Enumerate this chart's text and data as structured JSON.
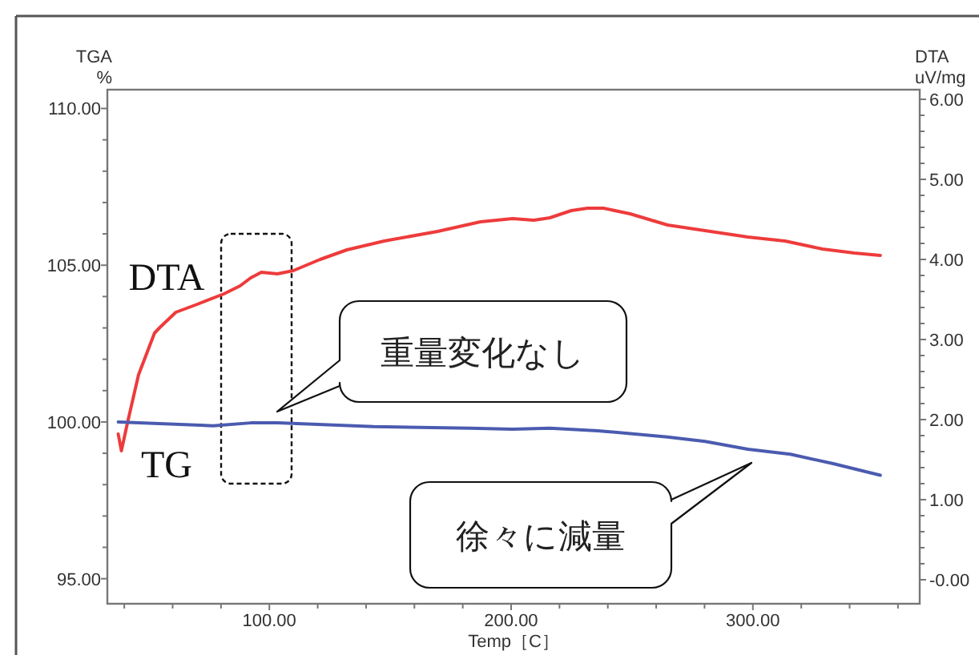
{
  "chart_data": {
    "type": "line",
    "xlabel": "Temp［C］",
    "ylabel": "TGA %",
    "y2label": "DTA uV/mg",
    "xlim": [
      33,
      369
    ],
    "xticks": [
      {
        "value": 40,
        "label": null
      },
      {
        "value": 60,
        "label": null
      },
      {
        "value": 80,
        "label": null
      },
      {
        "value": 100,
        "label": "100.00"
      },
      {
        "value": 120,
        "label": null
      },
      {
        "value": 140,
        "label": null
      },
      {
        "value": 160,
        "label": null
      },
      {
        "value": 180,
        "label": null
      },
      {
        "value": 200,
        "label": "200.00"
      },
      {
        "value": 220,
        "label": null
      },
      {
        "value": 240,
        "label": null
      },
      {
        "value": 260,
        "label": null
      },
      {
        "value": 280,
        "label": null
      },
      {
        "value": 300,
        "label": "300.00"
      },
      {
        "value": 320,
        "label": null
      },
      {
        "value": 340,
        "label": null
      },
      {
        "value": 360,
        "label": null
      }
    ],
    "ylim": [
      94.2,
      110.6
    ],
    "yticks": [
      {
        "value": 95,
        "label": "95.00"
      },
      {
        "value": 96,
        "label": null
      },
      {
        "value": 97,
        "label": null
      },
      {
        "value": 98,
        "label": null
      },
      {
        "value": 99,
        "label": null
      },
      {
        "value": 100,
        "label": "100.00"
      },
      {
        "value": 101,
        "label": null
      },
      {
        "value": 102,
        "label": null
      },
      {
        "value": 103,
        "label": null
      },
      {
        "value": 104,
        "label": null
      },
      {
        "value": 105,
        "label": "105.00"
      },
      {
        "value": 106,
        "label": null
      },
      {
        "value": 107,
        "label": null
      },
      {
        "value": 108,
        "label": null
      },
      {
        "value": 109,
        "label": null
      },
      {
        "value": 110,
        "label": "110.00"
      }
    ],
    "y2lim": [
      -0.3,
      6.12
    ],
    "y2ticks": [
      {
        "value": 0,
        "label": "-0.00"
      },
      {
        "value": 0.2,
        "label": null
      },
      {
        "value": 0.4,
        "label": null
      },
      {
        "value": 0.6,
        "label": null
      },
      {
        "value": 0.8,
        "label": null
      },
      {
        "value": 1,
        "label": "1.00"
      },
      {
        "value": 1.2,
        "label": null
      },
      {
        "value": 1.4,
        "label": null
      },
      {
        "value": 1.6,
        "label": null
      },
      {
        "value": 1.8,
        "label": null
      },
      {
        "value": 2,
        "label": "2.00"
      },
      {
        "value": 2.2,
        "label": null
      },
      {
        "value": 2.4,
        "label": null
      },
      {
        "value": 2.6,
        "label": null
      },
      {
        "value": 2.8,
        "label": null
      },
      {
        "value": 3,
        "label": "3.00"
      },
      {
        "value": 3.2,
        "label": null
      },
      {
        "value": 3.4,
        "label": null
      },
      {
        "value": 3.6,
        "label": null
      },
      {
        "value": 3.8,
        "label": null
      },
      {
        "value": 4,
        "label": "4.00"
      },
      {
        "value": 4.2,
        "label": null
      },
      {
        "value": 4.4,
        "label": null
      },
      {
        "value": 4.6,
        "label": null
      },
      {
        "value": 4.8,
        "label": null
      },
      {
        "value": 5,
        "label": "5.00"
      },
      {
        "value": 5.2,
        "label": null
      },
      {
        "value": 5.4,
        "label": null
      },
      {
        "value": 5.6,
        "label": null
      },
      {
        "value": 5.8,
        "label": null
      },
      {
        "value": 6,
        "label": "6.00"
      }
    ],
    "series": [
      {
        "name": "DTA",
        "color": "#ee3b3b",
        "axis": "y2",
        "x": [
          37.5,
          38.8,
          41.4,
          45.9,
          52.5,
          54.7,
          61.3,
          70.2,
          81.2,
          87.9,
          92.3,
          96.7,
          103.3,
          109.9,
          121,
          132.1,
          147.5,
          169.6,
          187.3,
          200.6,
          209.4,
          216,
          224.9,
          231.6,
          238.2,
          249.2,
          264.7,
          280.2,
          297.9,
          313.3,
          328.8,
          342,
          352.7
        ],
        "values": [
          1.82,
          1.61,
          1.97,
          2.56,
          3.08,
          3.15,
          3.34,
          3.44,
          3.57,
          3.67,
          3.77,
          3.84,
          3.82,
          3.86,
          4.0,
          4.12,
          4.23,
          4.35,
          4.47,
          4.51,
          4.49,
          4.52,
          4.61,
          4.64,
          4.64,
          4.57,
          4.43,
          4.36,
          4.28,
          4.23,
          4.13,
          4.08,
          4.05
        ]
      },
      {
        "name": "TG",
        "color": "#4b5bb0",
        "x": [
          37.5,
          76.8,
          92.3,
          103.3,
          143.1,
          182.9,
          200.6,
          216,
          235.9,
          264.7,
          280.2,
          297.9,
          315.5,
          333.2,
          352.7
        ],
        "values": [
          100.0,
          99.88,
          99.97,
          99.97,
          99.85,
          99.8,
          99.77,
          99.8,
          99.72,
          99.52,
          99.38,
          99.13,
          98.97,
          98.67,
          98.3
        ]
      }
    ],
    "annotations": [
      "重量変化なし",
      "徐々に減量"
    ]
  }
}
